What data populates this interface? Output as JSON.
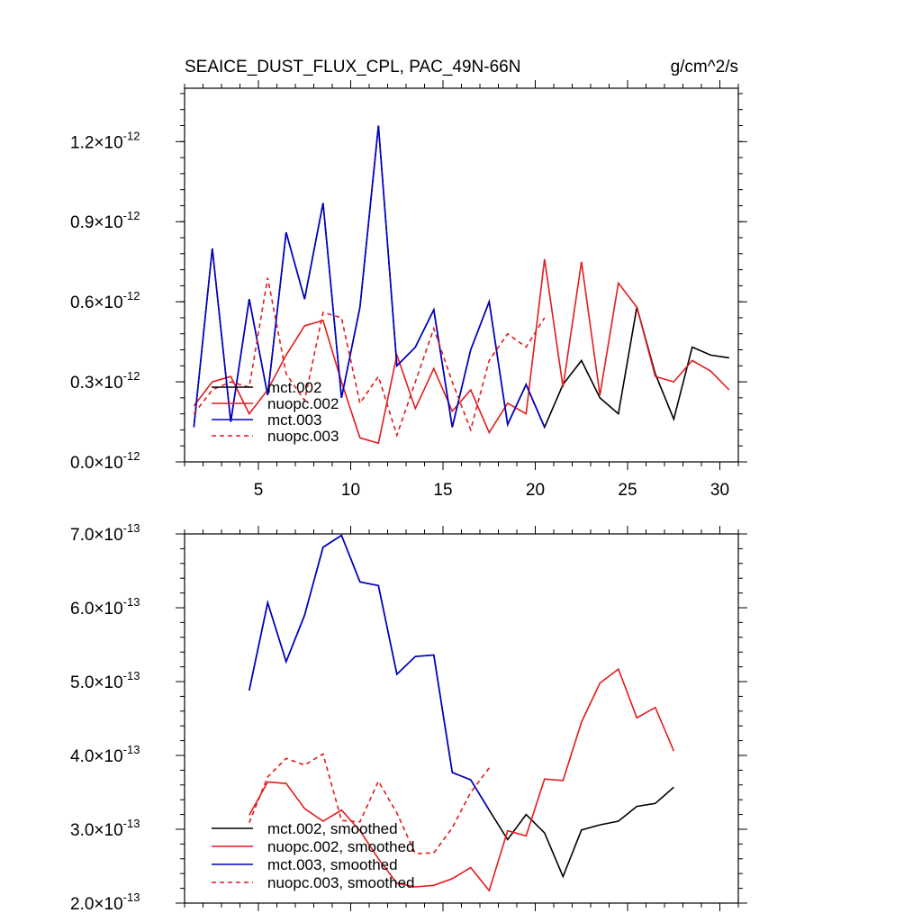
{
  "chart_data": [
    {
      "type": "line",
      "title": "SEAICE_DUST_FLUX_CPL, PAC_49N-66N",
      "units": "g/cm^2/s",
      "xlabel": "",
      "ylabel": "",
      "xlim": [
        1,
        31
      ],
      "ylim": [
        0.0,
        1.4e-12
      ],
      "x_ticks": [
        {
          "value": 5,
          "label": "5"
        },
        {
          "value": 10,
          "label": "10"
        },
        {
          "value": 15,
          "label": "15"
        },
        {
          "value": 20,
          "label": "20"
        },
        {
          "value": 25,
          "label": "25"
        },
        {
          "value": 30,
          "label": "30"
        }
      ],
      "y_ticks": [
        {
          "value": 0.0,
          "mant": "0.0",
          "exp": "-12"
        },
        {
          "value": 3e-13,
          "mant": "0.3",
          "exp": "-12"
        },
        {
          "value": 6e-13,
          "mant": "0.6",
          "exp": "-12"
        },
        {
          "value": 9e-13,
          "mant": "0.9",
          "exp": "-12"
        },
        {
          "value": 1.2e-12,
          "mant": "1.2",
          "exp": "-12"
        }
      ],
      "legend_position": "bottom-left",
      "series": [
        {
          "name": "mct.002",
          "color": "#000000",
          "dash": "solid",
          "x": [
            1.5,
            2.5,
            3.5,
            4.5,
            5.5,
            6.5,
            7.5,
            8.5,
            9.5,
            10.5,
            11.5,
            12.5,
            13.5,
            14.5,
            15.5,
            16.5,
            17.5,
            18.5,
            19.5,
            20.5,
            21.5,
            22.5,
            23.5,
            24.5,
            25.5,
            26.5,
            27.5,
            28.5,
            29.5,
            30.5
          ],
          "y": [
            1.3e-13,
            8e-13,
            1.5e-13,
            6.1e-13,
            2.5e-13,
            8.6e-13,
            6.1e-13,
            9.7e-13,
            2.4e-13,
            5.8e-13,
            1.26e-12,
            3.6e-13,
            4.3e-13,
            5.7e-13,
            1.3e-13,
            4.2e-13,
            6e-13,
            1.4e-13,
            2.9e-13,
            1.3e-13,
            2.9e-13,
            3.8e-13,
            2.4e-13,
            1.8e-13,
            5.8e-13,
            3.3e-13,
            1.6e-13,
            4.3e-13,
            4e-13,
            3.9e-13
          ]
        },
        {
          "name": "nuopc.002",
          "color": "#e41a1c",
          "dash": "solid",
          "x": [
            1.5,
            2.5,
            3.5,
            4.5,
            5.5,
            6.5,
            7.5,
            8.5,
            9.5,
            10.5,
            11.5,
            12.5,
            13.5,
            14.5,
            15.5,
            16.5,
            17.5,
            18.5,
            19.5,
            20.5,
            21.5,
            22.5,
            23.5,
            24.5,
            25.5,
            26.5,
            27.5,
            28.5,
            29.5,
            30.5
          ],
          "y": [
            2.1e-13,
            3e-13,
            3.2e-13,
            1.8e-13,
            2.7e-13,
            4e-13,
            5.1e-13,
            5.3e-13,
            3e-13,
            9e-14,
            7e-14,
            4e-13,
            2e-13,
            3.5e-13,
            1.9e-13,
            2.7e-13,
            1.1e-13,
            2.2e-13,
            1.8e-13,
            7.6e-13,
            2.8e-13,
            7.5e-13,
            2.5e-13,
            6.7e-13,
            5.8e-13,
            3.2e-13,
            3e-13,
            3.8e-13,
            3.4e-13,
            2.7e-13
          ]
        },
        {
          "name": "mct.003",
          "color": "#0000cc",
          "dash": "solid",
          "x": [
            1.5,
            2.5,
            3.5,
            4.5,
            5.5,
            6.5,
            7.5,
            8.5,
            9.5,
            10.5,
            11.5,
            12.5,
            13.5,
            14.5,
            15.5,
            16.5,
            17.5,
            18.5,
            19.5,
            20.5
          ],
          "y": [
            1.3e-13,
            8e-13,
            1.5e-13,
            6.1e-13,
            2.5e-13,
            8.6e-13,
            6.1e-13,
            9.7e-13,
            2.4e-13,
            5.8e-13,
            1.26e-12,
            3.6e-13,
            4.3e-13,
            5.7e-13,
            1.3e-13,
            4.2e-13,
            6e-13,
            1.4e-13,
            2.9e-13,
            1.3e-13
          ]
        },
        {
          "name": "nuopc.003",
          "color": "#e41a1c",
          "dash": "dashed",
          "x": [
            1.5,
            2.5,
            3.5,
            4.5,
            5.5,
            6.5,
            7.5,
            8.5,
            9.5,
            10.5,
            11.5,
            12.5,
            13.5,
            14.5,
            15.5,
            16.5,
            17.5,
            18.5,
            19.5,
            20.5
          ],
          "y": [
            1.8e-13,
            2.7e-13,
            3e-13,
            2.8e-13,
            6.9e-13,
            3.3e-13,
            2.3e-13,
            5.6e-13,
            5.4e-13,
            2.2e-13,
            3.2e-13,
            1e-13,
            3e-13,
            5e-13,
            3e-13,
            1.2e-13,
            3.8e-13,
            4.8e-13,
            4.3e-13,
            5.4e-13
          ]
        }
      ]
    },
    {
      "type": "line",
      "title": "",
      "xlabel": "",
      "ylabel": "",
      "xlim": [
        1,
        31
      ],
      "ylim": [
        2e-13,
        7e-13
      ],
      "x_ticks": [],
      "y_ticks": [
        {
          "value": 2e-13,
          "mant": "2.0",
          "exp": "-13"
        },
        {
          "value": 3e-13,
          "mant": "3.0",
          "exp": "-13"
        },
        {
          "value": 4e-13,
          "mant": "4.0",
          "exp": "-13"
        },
        {
          "value": 5e-13,
          "mant": "5.0",
          "exp": "-13"
        },
        {
          "value": 6e-13,
          "mant": "6.0",
          "exp": "-13"
        },
        {
          "value": 7e-13,
          "mant": "7.0",
          "exp": "-13"
        }
      ],
      "legend_position": "bottom-left",
      "series": [
        {
          "name": "mct.002, smoothed",
          "color": "#000000",
          "dash": "solid",
          "x": [
            4.5,
            5.5,
            6.5,
            7.5,
            8.5,
            9.5,
            10.5,
            11.5,
            12.5,
            13.5,
            14.5,
            15.5,
            16.5,
            17.5,
            18.5,
            19.5,
            20.5,
            21.5,
            22.5,
            23.5,
            24.5,
            25.5,
            26.5,
            27.5
          ],
          "y": [
            4.88e-13,
            6.07e-13,
            5.27e-13,
            5.9e-13,
            6.82e-13,
            6.98e-13,
            6.35e-13,
            6.3e-13,
            5.1e-13,
            5.34e-13,
            5.36e-13,
            3.77e-13,
            3.67e-13,
            3.26e-13,
            2.86e-13,
            3.2e-13,
            2.95e-13,
            2.36e-13,
            2.99e-13,
            3.06e-13,
            3.11e-13,
            3.31e-13,
            3.35e-13,
            3.57e-13
          ]
        },
        {
          "name": "nuopc.002, smoothed",
          "color": "#e41a1c",
          "dash": "solid",
          "x": [
            4.5,
            5.5,
            6.5,
            7.5,
            8.5,
            9.5,
            10.5,
            11.5,
            12.5,
            13.5,
            14.5,
            15.5,
            16.5,
            17.5,
            18.5,
            19.5,
            20.5,
            21.5,
            22.5,
            23.5,
            24.5,
            25.5,
            26.5,
            27.5
          ],
          "y": [
            3.19e-13,
            3.64e-13,
            3.62e-13,
            3.28e-13,
            3.11e-13,
            3.26e-13,
            2.98e-13,
            2.6e-13,
            2.27e-13,
            2.22e-13,
            2.24e-13,
            2.33e-13,
            2.48e-13,
            2.17e-13,
            2.98e-13,
            2.91e-13,
            3.68e-13,
            3.66e-13,
            4.45e-13,
            4.98e-13,
            5.17e-13,
            4.51e-13,
            4.65e-13,
            4.06e-13
          ]
        },
        {
          "name": "mct.003, smoothed",
          "color": "#0000cc",
          "dash": "solid",
          "x": [
            4.5,
            5.5,
            6.5,
            7.5,
            8.5,
            9.5,
            10.5,
            11.5,
            12.5,
            13.5,
            14.5,
            15.5,
            16.5,
            17.5
          ],
          "y": [
            4.88e-13,
            6.07e-13,
            5.27e-13,
            5.9e-13,
            6.82e-13,
            6.98e-13,
            6.35e-13,
            6.3e-13,
            5.1e-13,
            5.34e-13,
            5.36e-13,
            3.77e-13,
            3.67e-13,
            3.26e-13
          ]
        },
        {
          "name": "nuopc.003, smoothed",
          "color": "#e41a1c",
          "dash": "dashed",
          "x": [
            4.5,
            5.5,
            6.5,
            7.5,
            8.5,
            9.5,
            10.5,
            11.5,
            12.5,
            13.5,
            14.5,
            15.5,
            16.5,
            17.5
          ],
          "y": [
            3.09e-13,
            3.71e-13,
            3.96e-13,
            3.87e-13,
            4.02e-13,
            3.12e-13,
            3.1e-13,
            3.65e-13,
            3.22e-13,
            2.67e-13,
            2.68e-13,
            3.02e-13,
            3.5e-13,
            3.83e-13
          ]
        }
      ]
    }
  ]
}
